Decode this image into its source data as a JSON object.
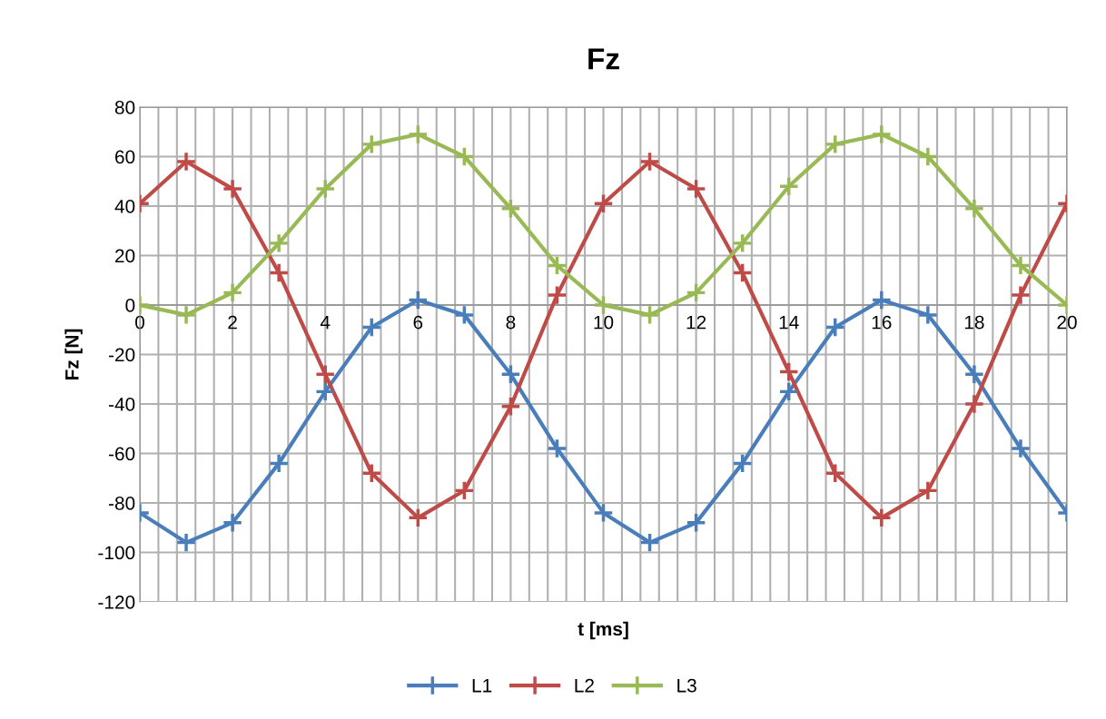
{
  "chart_data": {
    "type": "line",
    "title": "Fz",
    "xlabel": "t [ms]",
    "ylabel": "Fz [N]",
    "x": [
      0,
      1,
      2,
      3,
      4,
      5,
      6,
      7,
      8,
      9,
      10,
      11,
      12,
      13,
      14,
      15,
      16,
      17,
      18,
      19,
      20
    ],
    "series": [
      {
        "name": "L1",
        "color": "#4a7ebb",
        "values": [
          -84,
          -96,
          -88,
          -64,
          -35,
          -9,
          2,
          -4,
          -28,
          -58,
          -84,
          -96,
          -88,
          -64,
          -35,
          -9,
          2,
          -4,
          -28,
          -58,
          -84
        ]
      },
      {
        "name": "L2",
        "color": "#be4b48",
        "values": [
          41,
          58,
          47,
          13,
          -28,
          -68,
          -86,
          -75,
          -41,
          4,
          41,
          58,
          47,
          13,
          -27,
          -68,
          -86,
          -75,
          -40,
          4,
          41
        ]
      },
      {
        "name": "L3",
        "color": "#98b954",
        "values": [
          0,
          -4,
          5,
          25,
          47,
          65,
          69,
          60,
          39,
          16,
          0,
          -4,
          5,
          25,
          48,
          65,
          69,
          60,
          39,
          16,
          0
        ]
      }
    ],
    "xlim": [
      0,
      20
    ],
    "xticks": [
      0,
      {
        "value": 0.4,
        "label": null
      },
      {
        "value": 0.8,
        "label": null
      },
      {
        "value": 1.2,
        "label": null
      },
      {
        "value": 1.6,
        "label": null
      },
      2,
      {
        "value": 2.4,
        "label": null
      },
      {
        "value": 2.8,
        "label": null
      },
      {
        "value": 3.2,
        "label": null
      },
      {
        "value": 3.6,
        "label": null
      },
      4,
      {
        "value": 4.4,
        "label": null
      },
      {
        "value": 4.8,
        "label": null
      },
      {
        "value": 5.2,
        "label": null
      },
      {
        "value": 5.6,
        "label": null
      },
      6,
      {
        "value": 6.4,
        "label": null
      },
      {
        "value": 6.8,
        "label": null
      },
      {
        "value": 7.2,
        "label": null
      },
      {
        "value": 7.6,
        "label": null
      },
      8,
      {
        "value": 8.4,
        "label": null
      },
      {
        "value": 8.8,
        "label": null
      },
      {
        "value": 9.2,
        "label": null
      },
      {
        "value": 9.6,
        "label": null
      },
      10,
      {
        "value": 10.4,
        "label": null
      },
      {
        "value": 10.8,
        "label": null
      },
      {
        "value": 11.2,
        "label": null
      },
      {
        "value": 11.6,
        "label": null
      },
      12,
      {
        "value": 12.4,
        "label": null
      },
      {
        "value": 12.8,
        "label": null
      },
      {
        "value": 13.2,
        "label": null
      },
      {
        "value": 13.6,
        "label": null
      },
      14,
      {
        "value": 14.4,
        "label": null
      },
      {
        "value": 14.8,
        "label": null
      },
      {
        "value": 15.2,
        "label": null
      },
      {
        "value": 15.6,
        "label": null
      },
      16,
      {
        "value": 16.4,
        "label": null
      },
      {
        "value": 16.8,
        "label": null
      },
      {
        "value": 17.2,
        "label": null
      },
      {
        "value": 17.6,
        "label": null
      },
      18,
      {
        "value": 18.4,
        "label": null
      },
      {
        "value": 18.8,
        "label": null
      },
      {
        "value": 19.2,
        "label": null
      },
      {
        "value": 19.6,
        "label": null
      },
      20
    ],
    "ylim": [
      -120,
      80
    ],
    "yticks": [
      -120,
      -100,
      -80,
      -60,
      -40,
      -20,
      0,
      20,
      40,
      60,
      80
    ],
    "grid": true,
    "legend": "bottom",
    "marker": "cross",
    "line_style": "solid"
  }
}
